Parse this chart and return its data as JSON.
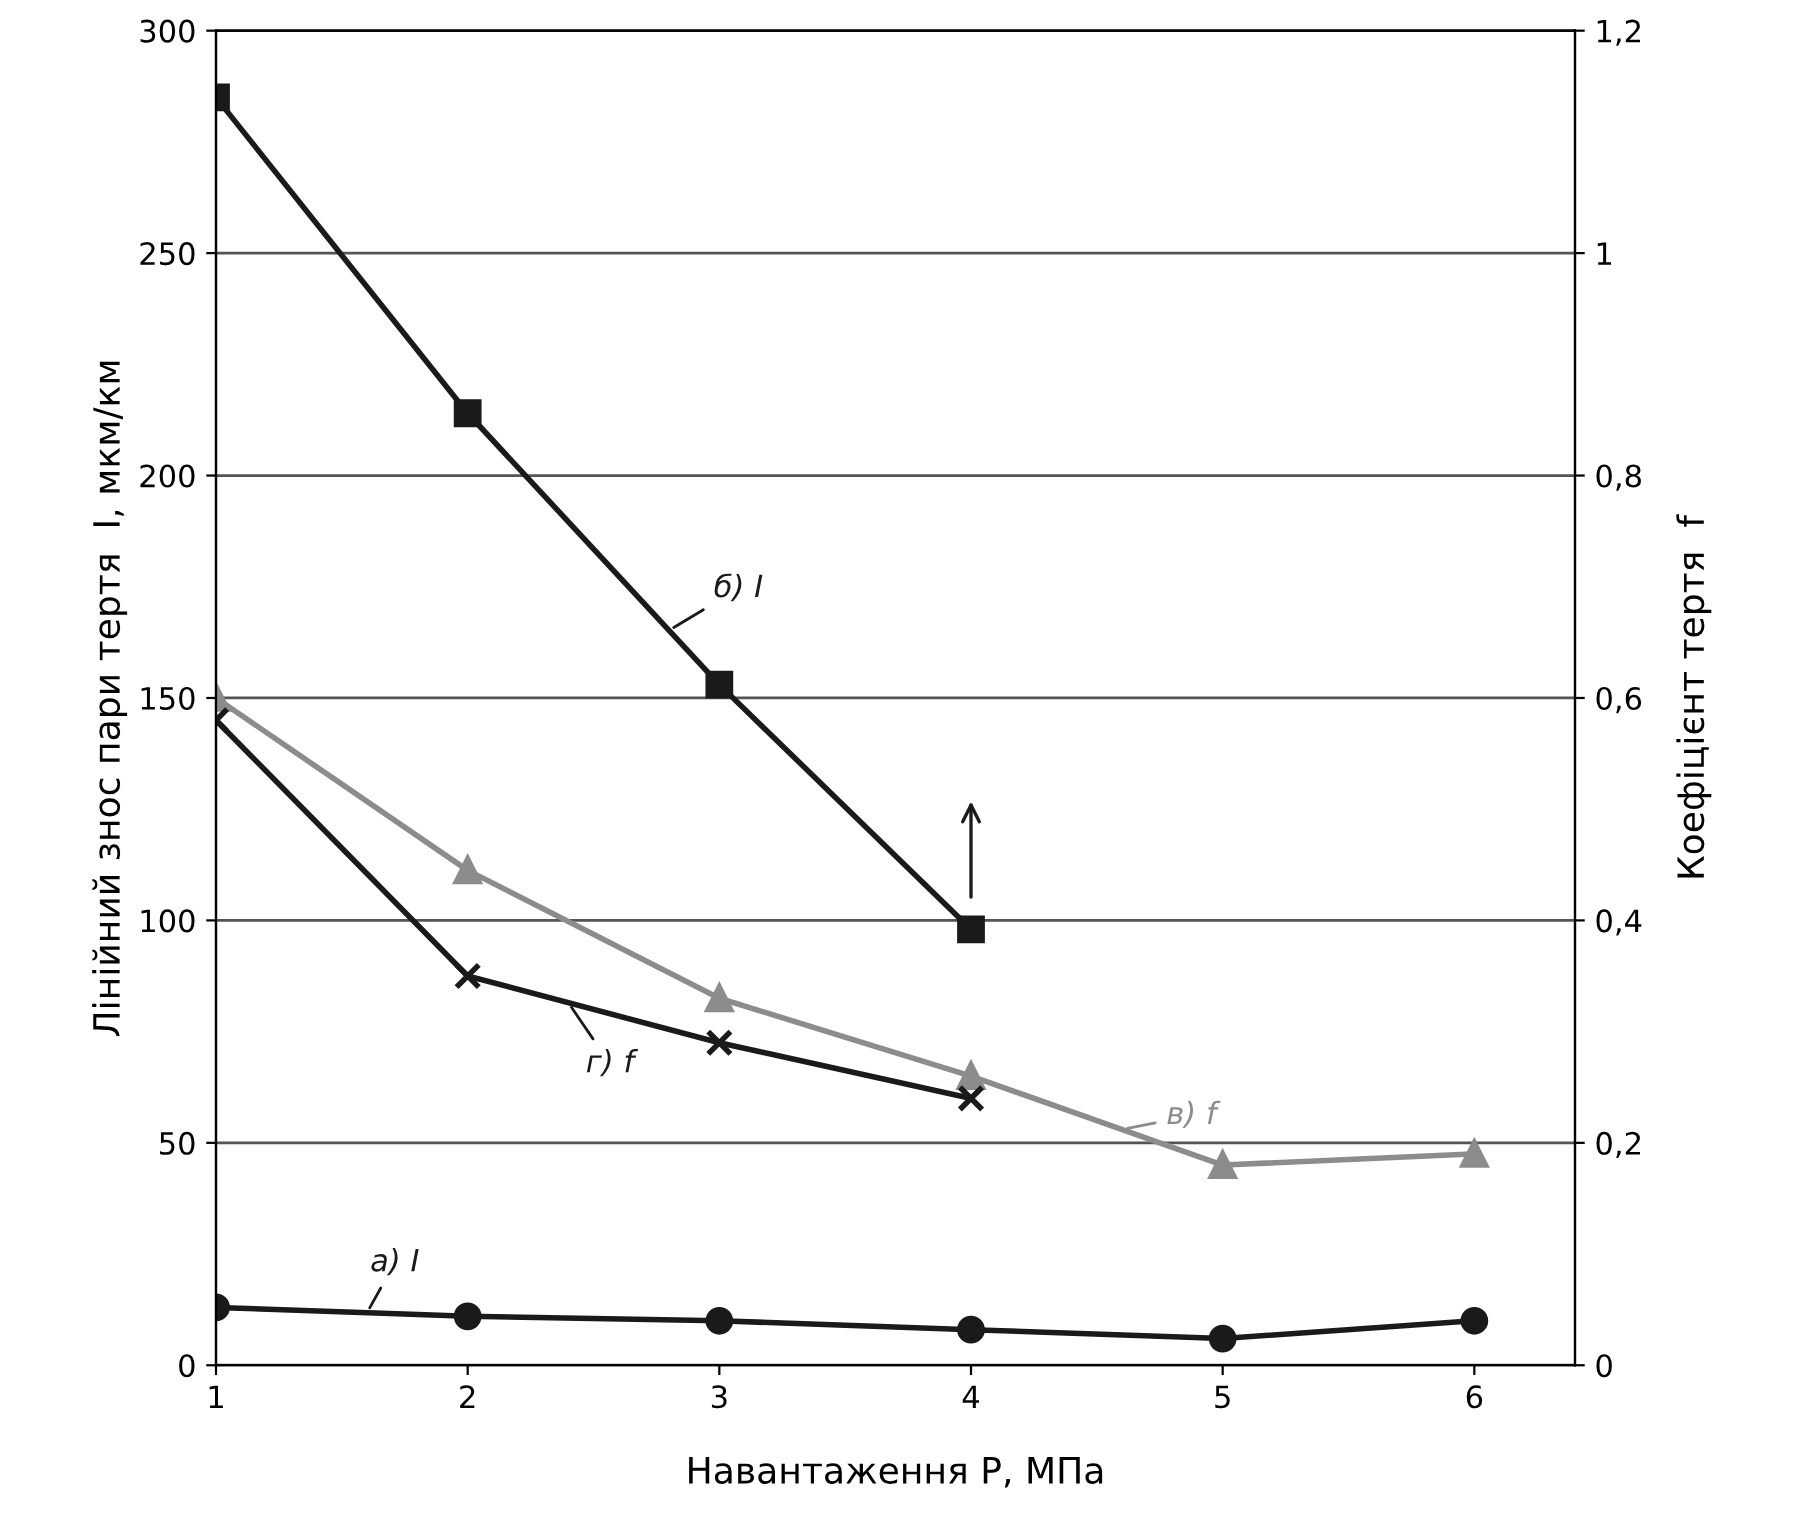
{
  "chart_data": {
    "type": "line",
    "xlabel": "Навантаження P, МПа",
    "ylabel": "Лінійний знос пари тертя  I, мкм/км",
    "y2label": "Коефіцієнт тертя  f",
    "x": [
      1,
      2,
      3,
      4,
      5,
      6
    ],
    "series": [
      {
        "name": "б) I",
        "color": "#1a1a1a",
        "marker": "square",
        "x": [
          1,
          2,
          3,
          4
        ],
        "values": [
          285,
          214,
          153,
          98
        ]
      },
      {
        "name": "а) I",
        "color": "#1a1a1a",
        "marker": "circle",
        "values": [
          13,
          11,
          10,
          8,
          6,
          10
        ]
      },
      {
        "name": "в) f",
        "color": "#8c8c8c",
        "marker": "triangle",
        "axis": "y2",
        "values": [
          0.6,
          0.445,
          0.33,
          0.26,
          0.18,
          0.19
        ]
      },
      {
        "name": "г) f",
        "color": "#1a1a1a",
        "marker": "cross",
        "axis": "y2",
        "x": [
          1,
          2,
          3,
          4
        ],
        "values": [
          0.58,
          0.35,
          0.29,
          0.24
        ]
      }
    ],
    "xlim": [
      1,
      6.4
    ],
    "xticks": [
      1,
      2,
      3,
      4,
      5,
      6
    ],
    "ylim": [
      0,
      300
    ],
    "yticks": [
      0,
      50,
      100,
      150,
      200,
      250,
      300
    ],
    "y2lim": [
      0,
      1.2
    ],
    "y2ticks": [
      0,
      {
        "value": 0.2,
        "label": "0,2"
      },
      {
        "value": 0.4,
        "label": "0,4"
      },
      {
        "value": 0.6,
        "label": "0,6"
      },
      {
        "value": 0.8,
        "label": "0,8"
      },
      {
        "value": 1,
        "label": "1"
      },
      {
        "value": 1.2,
        "label": "1,2"
      }
    ],
    "grid": "y",
    "line_style": "solid"
  }
}
